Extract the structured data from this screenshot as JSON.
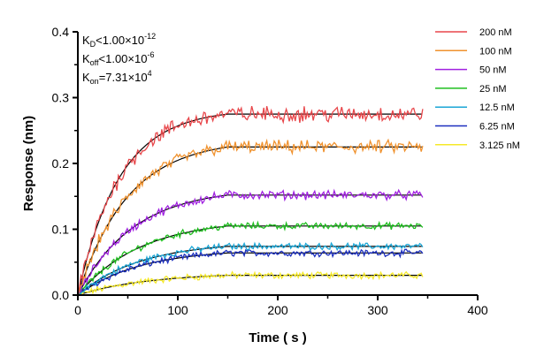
{
  "chart_data": {
    "type": "line",
    "title": "",
    "xlabel": "Time ( s )",
    "ylabel": "Response (nm)",
    "xlim": [
      0,
      400
    ],
    "ylim": [
      0,
      0.4
    ],
    "x_ticks": [
      "0",
      "100",
      "200",
      "300",
      "400"
    ],
    "y_ticks": [
      "0.0",
      "0.1",
      "0.2",
      "0.3",
      "0.4"
    ],
    "grid": false,
    "legend_position": "right",
    "association_end_s": 150,
    "end_s": 345,
    "annotations": {
      "kd": {
        "main": "K",
        "sub": "D",
        "rest": "<1.00×10",
        "sup": "-12"
      },
      "koff": {
        "main": "K",
        "sub": "off",
        "rest": "<1.00×10",
        "sup": "-6"
      },
      "kon": {
        "main": "K",
        "sub": "on",
        "rest": "=7.31×10",
        "sup": "4"
      }
    },
    "series": [
      {
        "name": "200 nM",
        "color": "#e8474b",
        "plateau": 0.275,
        "kobs": 0.024
      },
      {
        "name": "100 nM",
        "color": "#f0922e",
        "plateau": 0.225,
        "kobs": 0.02
      },
      {
        "name": "50 nM",
        "color": "#a020e0",
        "plateau": 0.152,
        "kobs": 0.018
      },
      {
        "name": "25 nM",
        "color": "#1fbf1f",
        "plateau": 0.105,
        "kobs": 0.016
      },
      {
        "name": "12.5 nM",
        "color": "#1aa6d6",
        "plateau": 0.074,
        "kobs": 0.016
      },
      {
        "name": "6.25 nM",
        "color": "#1c2fbf",
        "plateau": 0.064,
        "kobs": 0.016
      },
      {
        "name": "3.125 nM",
        "color": "#f5e92a",
        "plateau": 0.03,
        "kobs": 0.014
      }
    ]
  }
}
